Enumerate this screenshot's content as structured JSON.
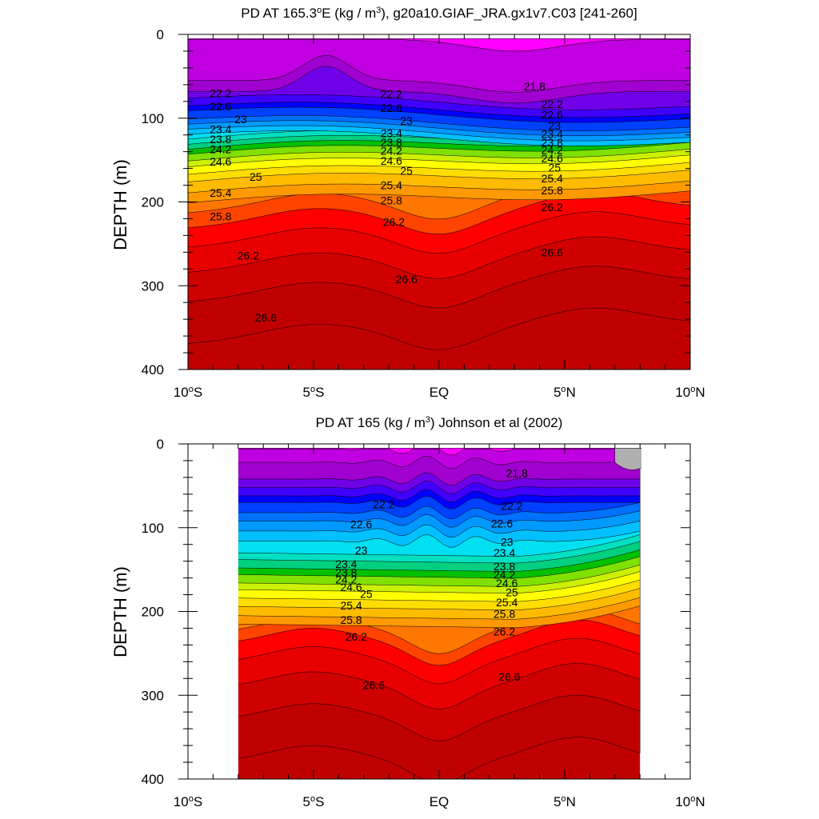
{
  "chart_data": [
    {
      "type": "contour",
      "title_html": "PD AT 165.3<tspan baseline-shift='super' font-size='11'>o</tspan>E (kg / m<tspan baseline-shift='super' font-size='11'>3</tspan>), g20a10.GIAF_JRA.gx1v7.C03 [241-260]",
      "title": "PD AT 165.3oE (kg / m3), g20a10.GIAF_JRA.gx1v7.C03 [241-260]",
      "ylabel": "DEPTH (m)",
      "xlim": [
        -10,
        10
      ],
      "ylim": [
        400,
        0
      ],
      "yticks": [
        "0",
        "100",
        "200",
        "300",
        "400"
      ],
      "xticks": [
        "10oS",
        "5oS",
        "EQ",
        "5oN",
        "10oN"
      ],
      "data_xrange": [
        -10,
        10
      ],
      "contour_labels": {
        "22.2": [
          [
            -8.7,
            70
          ],
          [
            -1.9,
            71
          ],
          [
            4.5,
            83
          ]
        ],
        "22.6": [
          [
            -8.7,
            86
          ],
          [
            -1.9,
            88
          ],
          [
            4.5,
            96
          ]
        ],
        "23": [
          [
            -7.9,
            101
          ],
          [
            -1.3,
            103
          ],
          [
            4.6,
            109
          ]
        ],
        "23.4": [
          [
            -8.7,
            113
          ],
          [
            -1.9,
            118
          ],
          [
            4.5,
            119
          ]
        ],
        "23.8": [
          [
            -8.7,
            125
          ],
          [
            -1.9,
            129
          ],
          [
            4.5,
            129
          ]
        ],
        "24.2": [
          [
            -8.7,
            137
          ],
          [
            -1.9,
            139
          ],
          [
            4.5,
            138
          ]
        ],
        "24.6": [
          [
            -8.7,
            152
          ],
          [
            -1.9,
            151
          ],
          [
            4.5,
            148
          ]
        ],
        "25": [
          [
            -7.3,
            170
          ],
          [
            -1.3,
            163
          ],
          [
            4.6,
            159
          ]
        ],
        "25.4": [
          [
            -8.7,
            189
          ],
          [
            -1.9,
            180
          ],
          [
            4.5,
            172
          ]
        ],
        "25.8": [
          [
            -8.7,
            217
          ],
          [
            -1.9,
            198
          ],
          [
            4.5,
            186
          ]
        ],
        "26.2": [
          [
            -7.6,
            264
          ],
          [
            -1.8,
            224
          ],
          [
            4.5,
            206
          ]
        ],
        "26.6": [
          [
            -6.9,
            338
          ],
          [
            -1.3,
            292
          ],
          [
            4.5,
            260
          ]
        ],
        "21.8": [
          [
            3.8,
            62
          ]
        ]
      }
    },
    {
      "type": "contour",
      "title_html": "PD AT 165 (kg / m<tspan baseline-shift='super' font-size='11'>3</tspan>) Johnson et al (2002)",
      "title": "PD AT 165 (kg / m3) Johnson et al (2002)",
      "ylabel": "DEPTH (m)",
      "xlim": [
        -10,
        10
      ],
      "ylim": [
        400,
        0
      ],
      "yticks": [
        "0",
        "100",
        "200",
        "300",
        "400"
      ],
      "xticks": [
        "10oS",
        "5oS",
        "EQ",
        "5oN",
        "10oN"
      ],
      "data_xrange": [
        -8,
        8
      ],
      "missing_value_patch": [
        7,
        8.4
      ],
      "contour_labels": {
        "21.8": [
          [
            3.1,
            35
          ]
        ],
        "22.2": [
          [
            -2.2,
            72
          ],
          [
            2.9,
            74
          ]
        ],
        "22.6": [
          [
            -3.1,
            96
          ],
          [
            2.5,
            95
          ]
        ],
        "23": [
          [
            -3.1,
            127
          ],
          [
            2.7,
            117
          ]
        ],
        "23.4": [
          [
            -3.7,
            143
          ],
          [
            2.6,
            130
          ]
        ],
        "23.8": [
          [
            -3.7,
            153
          ],
          [
            2.6,
            146
          ]
        ],
        "24.2": [
          [
            -3.7,
            162
          ],
          [
            2.6,
            156
          ]
        ],
        "24.6": [
          [
            -3.5,
            171
          ],
          [
            2.7,
            166
          ]
        ],
        "25": [
          [
            -2.9,
            179
          ],
          [
            2.9,
            177
          ]
        ],
        "25.4": [
          [
            -3.5,
            193
          ],
          [
            2.7,
            189
          ]
        ],
        "25.8": [
          [
            -3.5,
            210
          ],
          [
            2.6,
            203
          ]
        ],
        "26.2": [
          [
            -3.3,
            230
          ],
          [
            2.6,
            224
          ]
        ],
        "26.6": [
          [
            -2.6,
            288
          ],
          [
            2.8,
            278
          ]
        ]
      }
    }
  ],
  "levels": [
    21.8,
    22.0,
    22.2,
    22.4,
    22.6,
    22.8,
    23.0,
    23.2,
    23.4,
    23.6,
    23.8,
    24.0,
    24.2,
    24.4,
    24.6,
    24.8,
    25.0,
    25.2,
    25.4,
    25.6,
    25.8,
    26.0,
    26.2,
    26.4,
    26.6,
    26.8
  ],
  "level_colors": [
    "#ff00ff",
    "#c000e0",
    "#a000d0",
    "#7000e8",
    "#4000ff",
    "#0000ff",
    "#0040ff",
    "#0070ff",
    "#0099ff",
    "#00c0ff",
    "#00e0f0",
    "#00e0c0",
    "#00d080",
    "#00c000",
    "#80e000",
    "#ccf000",
    "#ffff00",
    "#ffdd00",
    "#ffbb00",
    "#ff9900",
    "#ff7700",
    "#ff4400",
    "#ff0000",
    "#e80000",
    "#d00000",
    "#c00000"
  ],
  "missing_color": "#b0b0b0"
}
